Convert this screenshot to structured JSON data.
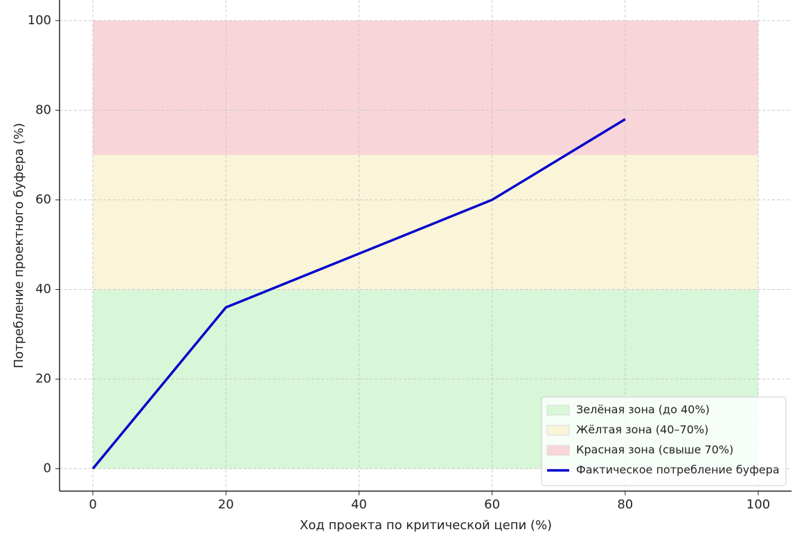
{
  "chart_data": {
    "type": "line",
    "xlabel": "Ход проекта по критической цепи (%)",
    "ylabel": "Потребление проектного буфера (%)",
    "zones": [
      {
        "name": "Зелёная зона (до 40%)",
        "color": "#d8f6d8",
        "range": [
          0,
          40
        ],
        "x": [
          0,
          100
        ]
      },
      {
        "name": "Жёлтая зона (40–70%)",
        "color": "#faf4d9",
        "range": [
          40,
          70
        ],
        "x": [
          0,
          100
        ]
      },
      {
        "name": "Красная зона (свыше 70%)",
        "color": "#f8d5d8",
        "range": [
          70,
          100
        ],
        "x": [
          0,
          100
        ]
      }
    ],
    "series": [
      {
        "name": "Фактическое потребление буфера",
        "color": "#0000cc",
        "x": [
          0,
          20,
          60,
          80
        ],
        "values": [
          0,
          36,
          60,
          78
        ]
      }
    ],
    "xlim": [
      -5,
      105
    ],
    "ylim": [
      -5,
      104.6
    ],
    "xticks": [
      0,
      20,
      40,
      60,
      80,
      100
    ],
    "yticks": [
      0,
      20,
      40,
      60,
      80,
      100
    ],
    "grid": true,
    "legend": "lower right"
  }
}
